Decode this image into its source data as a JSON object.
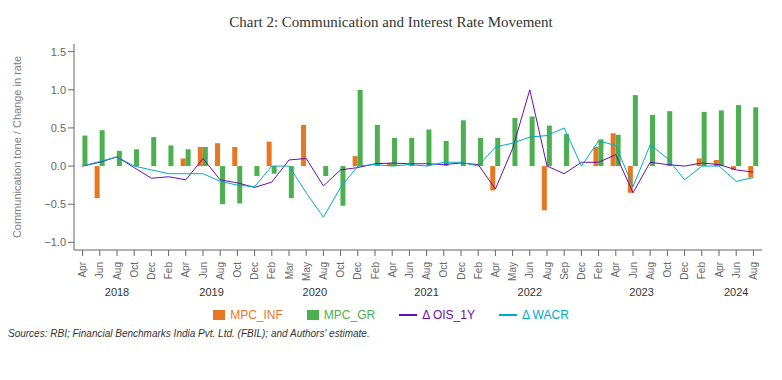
{
  "chart_data": {
    "type": "bar",
    "title": "Chart 2: Communication and Interest Rate Movement",
    "ylabel": "Communication tone / Change in rate",
    "source": "Sources: RBI; Financial Benchmarks India Pvt. Ltd. (FBIL); and Authors' estimate.",
    "annotations": [
      {
        "text": "2018",
        "x": 2.0
      },
      {
        "text": "2019",
        "x": 7.5
      },
      {
        "text": "2020",
        "x": 13.5
      },
      {
        "text": "2021",
        "x": 20.0
      },
      {
        "text": "2022",
        "x": 26.0
      },
      {
        "text": "2023",
        "x": 32.5
      },
      {
        "text": "2024",
        "x": 38.0
      }
    ],
    "categories": [
      "Apr",
      "Jun",
      "Aug",
      "Oct",
      "Dec",
      "Feb",
      "Apr",
      "Jun",
      "Aug",
      "Oct",
      "Dec",
      "Feb",
      "Mar",
      "May",
      "Aug",
      "Oct",
      "Dec",
      "Feb",
      "Apr",
      "Jun",
      "Aug",
      "Oct",
      "Dec",
      "Feb",
      "Apr",
      "May",
      "Jun",
      "Aug",
      "Sep",
      "Dec",
      "Feb",
      "Apr",
      "Jun",
      "Aug",
      "Oct",
      "Dec",
      "Feb",
      "Apr",
      "Jun",
      "Aug"
    ],
    "series": [
      {
        "name": "MPC_INF",
        "type": "bar",
        "color": "#E87722",
        "values": [
          0.0,
          -0.42,
          0.0,
          0.0,
          0.0,
          0.0,
          0.1,
          0.25,
          0.3,
          0.25,
          0.0,
          0.32,
          0.0,
          0.54,
          0.0,
          0.0,
          0.13,
          0.0,
          0.04,
          0.0,
          0.0,
          0.0,
          0.0,
          0.0,
          -0.32,
          0.0,
          0.0,
          -0.58,
          0.0,
          0.0,
          0.25,
          0.43,
          -0.35,
          0.0,
          0.0,
          0.0,
          0.1,
          0.08,
          -0.05,
          -0.15
        ]
      },
      {
        "name": "MPC_GR",
        "type": "bar",
        "color": "#4caf50",
        "values": [
          0.4,
          0.47,
          0.2,
          0.22,
          0.38,
          0.27,
          0.22,
          0.25,
          -0.5,
          -0.49,
          -0.13,
          -0.1,
          -0.42,
          0.0,
          -0.13,
          -0.52,
          1.0,
          0.54,
          0.37,
          0.37,
          0.48,
          0.33,
          0.6,
          0.37,
          0.37,
          0.63,
          0.65,
          0.53,
          0.42,
          0.0,
          0.35,
          0.41,
          0.93,
          0.67,
          0.72,
          0.0,
          0.71,
          0.73,
          0.8,
          0.77
        ]
      },
      {
        "name": "Δ OIS_1Y",
        "type": "line",
        "color": "#6a0dad",
        "values": [
          0.0,
          0.05,
          0.12,
          -0.02,
          -0.16,
          -0.14,
          -0.18,
          0.1,
          -0.18,
          -0.22,
          -0.28,
          -0.21,
          0.08,
          0.1,
          -0.26,
          -0.05,
          -0.02,
          0.03,
          0.04,
          0.03,
          0.03,
          0.02,
          0.04,
          0.02,
          -0.3,
          0.23,
          1.0,
          0.0,
          -0.1,
          0.05,
          0.05,
          0.15,
          -0.35,
          0.05,
          0.02,
          0.0,
          0.04,
          0.02,
          -0.05,
          -0.08
        ]
      },
      {
        "name": "Δ WACR",
        "type": "line",
        "color": "#00aacc",
        "values": [
          0.0,
          0.06,
          0.12,
          0.0,
          -0.05,
          -0.1,
          -0.1,
          -0.1,
          -0.2,
          -0.25,
          -0.27,
          0.0,
          0.0,
          -0.35,
          -0.67,
          -0.28,
          0.0,
          0.02,
          0.0,
          0.02,
          0.0,
          0.05,
          0.05,
          0.0,
          0.25,
          0.3,
          0.38,
          0.4,
          0.5,
          0.0,
          0.33,
          0.27,
          -0.27,
          0.28,
          0.1,
          -0.18,
          0.0,
          0.0,
          -0.2,
          -0.15
        ]
      }
    ],
    "ylim": [
      -1.1,
      1.6
    ],
    "yticks": [
      {
        "value": -1.0,
        "label": "−1.0"
      },
      {
        "value": -0.5,
        "label": "−0.5"
      },
      {
        "value": 0.0,
        "label": "0.0"
      },
      0.5,
      {
        "value": 1.0,
        "label": "1.0"
      },
      1.5
    ],
    "grid": false,
    "legend": "bottom"
  }
}
